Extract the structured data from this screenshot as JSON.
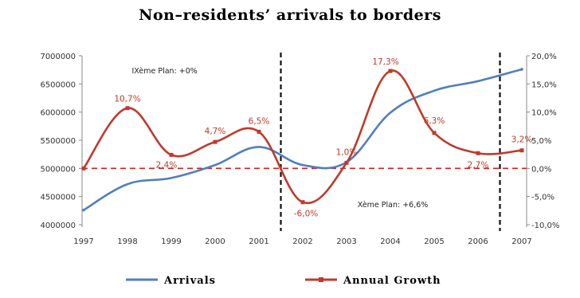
{
  "chart_data": {
    "type": "line",
    "title": "Non–residents’ arrivals to borders",
    "categories": [
      "1997",
      "1998",
      "1999",
      "2000",
      "2001",
      "2002",
      "2003",
      "2004",
      "2005",
      "2006",
      "2007"
    ],
    "y_left": {
      "ticks": [
        "7000000",
        "6500000",
        "6000000",
        "5500000",
        "5000000",
        "4500000",
        "4000000"
      ],
      "ylim": [
        4000000,
        7000000
      ]
    },
    "y_right": {
      "ticks": [
        "20,0%",
        "15,0%",
        "10,0%",
        "5,0%",
        "0,0%",
        "-5,0%",
        "-10,0%"
      ],
      "ylim": [
        -10,
        20
      ]
    },
    "series": [
      {
        "name": "Arrivals",
        "axis": "left",
        "color": "#4f7fbf",
        "values": [
          4260000,
          4720000,
          4830000,
          5060000,
          5380000,
          5060000,
          5110000,
          5990000,
          6380000,
          6550000,
          6760000
        ]
      },
      {
        "name": "Annual Growth",
        "axis": "right",
        "color": "#c0392b",
        "values": [
          0.0,
          10.7,
          2.4,
          4.7,
          6.5,
          -6.0,
          1.0,
          17.3,
          6.3,
          2.7,
          3.2
        ],
        "labels": [
          "",
          "10,7%",
          "2,4%",
          "4,7%",
          "6,5%",
          "-6,0%",
          "1,0%",
          "17,3%",
          "6,3%",
          "2,7%",
          "3,2%"
        ]
      }
    ],
    "annotations": [
      {
        "text": "IXème Plan: +0%"
      },
      {
        "text": "Xème Plan: +6,6%"
      }
    ],
    "reference_lines": {
      "horizontal_zero_color": "#d02020",
      "vertical_dashed_after": [
        "2001",
        "2006"
      ]
    },
    "legend": [
      "Arrivals",
      "Annual Growth"
    ],
    "legend_position": "bottom",
    "grid": false
  }
}
